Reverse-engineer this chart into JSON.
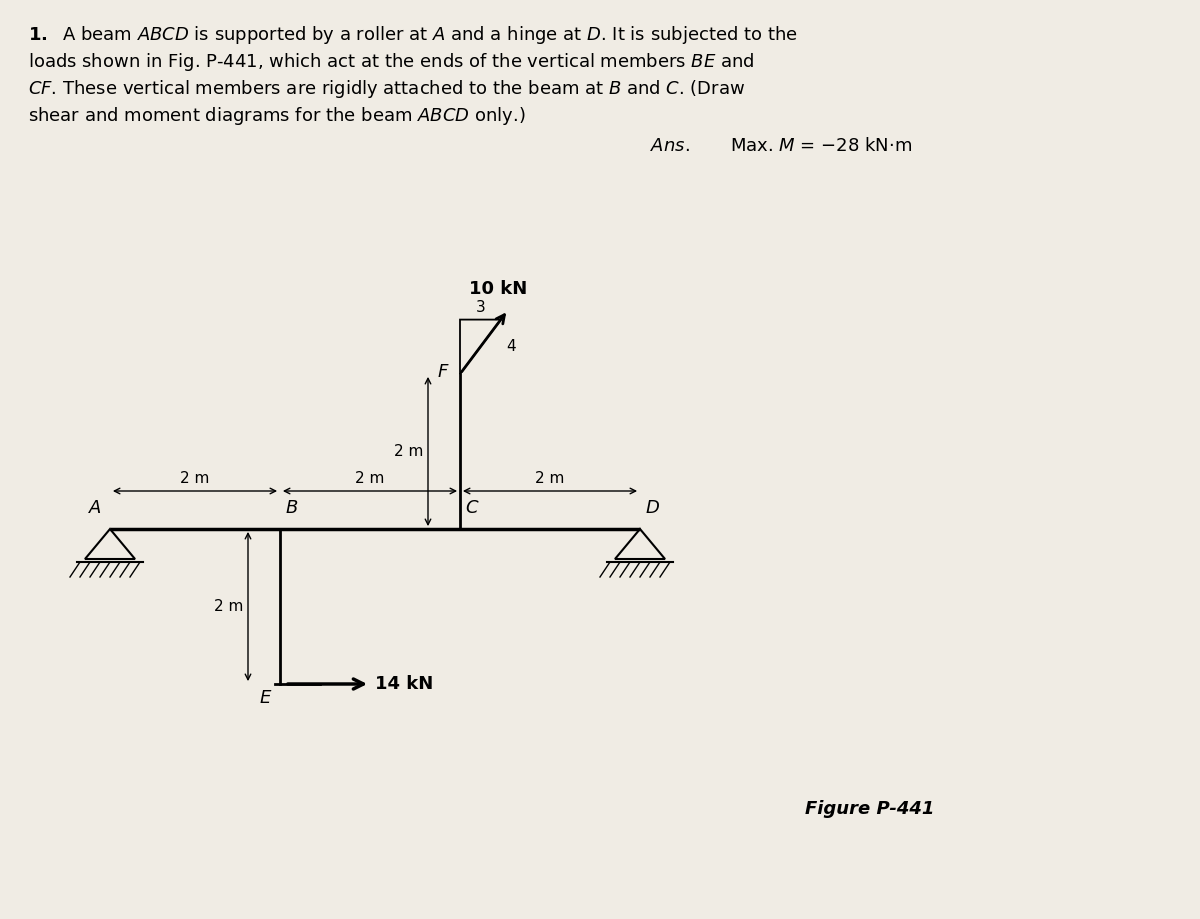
{
  "bg_color": "#f0ece4",
  "text_color": "#000000",
  "title_line1": "1.  A beam ",
  "title_bold_ABCD": "ABCD",
  "ans_italic": "Ans.",
  "ans_value": "Max. M = −28 kN·m",
  "figure_label": "Figure P-441",
  "load_10kN": "10 kN",
  "load_14kN": "14 kN",
  "label_2m": "2 m",
  "lw_beam": 2.5,
  "lw_member": 2.0,
  "lw_support": 1.5,
  "lw_dim": 1.0,
  "fontsize_body": 13,
  "fontsize_label": 13,
  "fontsize_force": 13,
  "fontsize_dim": 11,
  "fontsize_fig": 13,
  "fontsize_ans": 13
}
